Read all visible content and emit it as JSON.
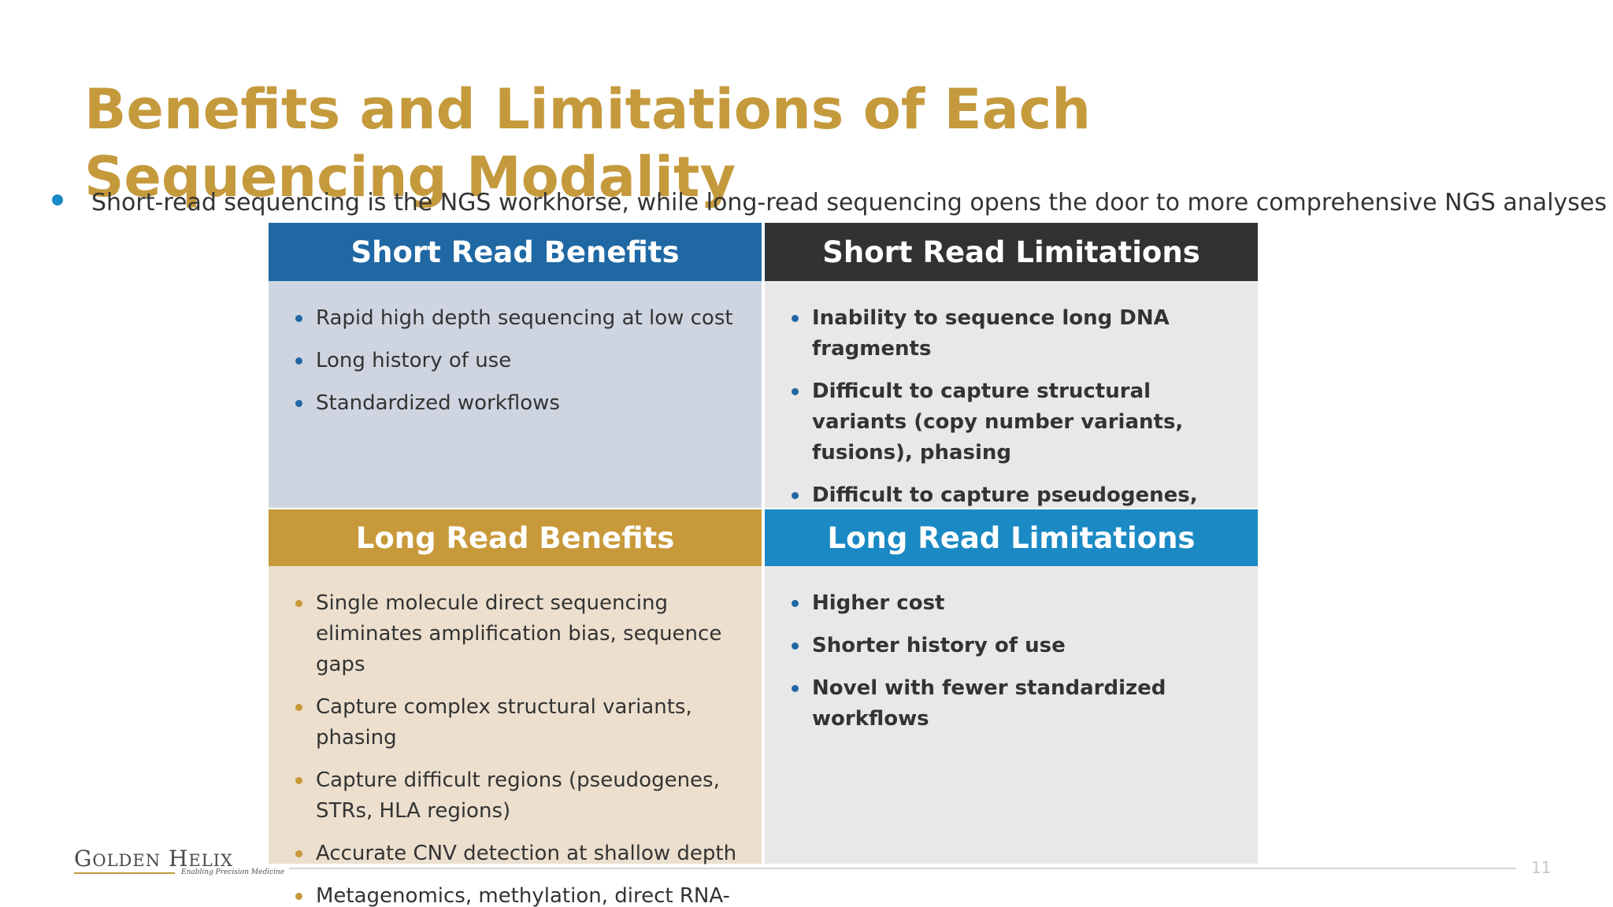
{
  "slide": {
    "title": "Benefits and Limitations of Each Sequencing Modality",
    "subtitle": "Short-read sequencing is the NGS workhorse, while long-read sequencing opens the door to more comprehensive NGS analyses",
    "page_number": "11"
  },
  "colors": {
    "title": "#c59a3d",
    "accent_blue": "#1b8ac4",
    "short_benefits_header": "#1f68a4",
    "short_benefits_body": "#ced5e1",
    "short_limitations_header": "#323232",
    "short_limitations_body": "#e8e8e8",
    "long_benefits_header": "#c8993a",
    "long_benefits_body": "#ecdfce",
    "long_limitations_header": "#1b8ac4",
    "long_limitations_body": "#e8e8e8"
  },
  "quadrants": {
    "short_benefits": {
      "header": "Short Read Benefits",
      "items": [
        "Rapid high depth sequencing at low cost",
        "Long history of use",
        "Standardized workflows"
      ]
    },
    "short_limitations": {
      "header": "Short Read Limitations",
      "items": [
        "Inability to sequence long DNA fragments",
        "Difficult to capture structural variants (copy number variants, fusions), phasing",
        "Difficult to capture pseudogenes, STRs, HLA regions"
      ]
    },
    "long_benefits": {
      "header": "Long Read Benefits",
      "items": [
        "Single molecule direct sequencing eliminates amplification bias, sequence gaps",
        "Capture complex structural variants, phasing",
        "Capture difficult regions (pseudogenes, STRs, HLA regions)",
        "Accurate CNV detection at shallow depth",
        "Metagenomics, methylation, direct RNA-Seq"
      ]
    },
    "long_limitations": {
      "header": "Long Read Limitations",
      "items": [
        "Higher cost",
        "Shorter history of use",
        "Novel with fewer standardized workflows"
      ]
    }
  },
  "logo": {
    "name_part1_initial": "G",
    "name_part1_rest": "OLDEN",
    "name_part2_initial": "H",
    "name_part2_rest": "ELIX",
    "tagline": "Enabling Precision Medicine"
  }
}
